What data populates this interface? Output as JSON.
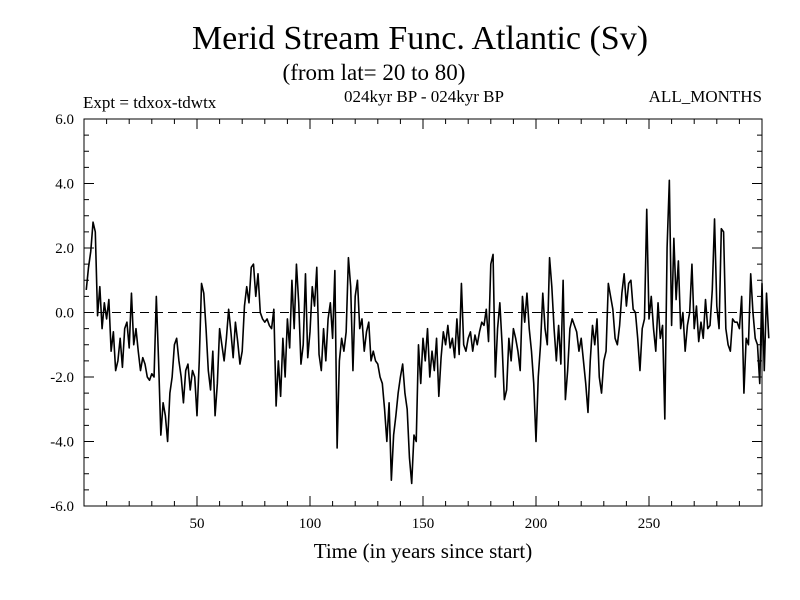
{
  "chart_data": {
    "type": "line",
    "title": "Merid Stream Func. Atlantic (Sv)",
    "subtitle": "(from lat= 20 to 80)",
    "expt_label": "Expt = tdxox-tdwtx",
    "period_label": "024kyr BP - 024kyr BP",
    "months_label": "ALL_MONTHS",
    "xlabel": "Time (in years since start)",
    "ylabel": "",
    "xlim": [
      0,
      300
    ],
    "ylim": [
      -6,
      6
    ],
    "x_ticks": [
      50,
      100,
      150,
      200,
      250
    ],
    "x_tick_labels": [
      "50",
      "100",
      "150",
      "200",
      "250"
    ],
    "y_ticks": [
      -6,
      -4,
      -2,
      0,
      2,
      4,
      6
    ],
    "y_tick_labels": [
      "-6.0",
      "-4.0",
      "-2.0",
      "0.0",
      "2.0",
      "4.0",
      "6.0"
    ],
    "zero_line": "dashed",
    "series": [
      {
        "name": "Merid Stream Func. Atlantic",
        "color": "#000000",
        "x_start": 1,
        "x_step": 1,
        "values": [
          0.7,
          1.4,
          1.9,
          2.8,
          2.5,
          -0.1,
          0.8,
          -0.5,
          0.3,
          -0.2,
          0.4,
          -1.2,
          -0.6,
          -1.8,
          -1.5,
          -0.8,
          -1.7,
          -0.5,
          -0.3,
          -1.1,
          0.6,
          -1.0,
          -0.5,
          -1.2,
          -1.8,
          -1.4,
          -1.6,
          -2.0,
          -2.1,
          -1.9,
          -2.0,
          0.5,
          -1.5,
          -3.8,
          -2.8,
          -3.2,
          -4.0,
          -2.5,
          -2.0,
          -1.0,
          -0.8,
          -1.5,
          -2.0,
          -2.8,
          -1.8,
          -1.6,
          -2.4,
          -1.8,
          -2.0,
          -3.2,
          -1.5,
          0.9,
          0.6,
          -0.5,
          -1.8,
          -2.4,
          -1.2,
          -3.2,
          -2.2,
          -0.5,
          -1.0,
          -1.5,
          -0.8,
          0.1,
          -0.6,
          -1.4,
          -0.3,
          -0.9,
          -1.6,
          -1.2,
          0.2,
          0.8,
          0.3,
          1.4,
          1.5,
          0.5,
          1.2,
          0.0,
          -0.2,
          -0.3,
          -0.2,
          -0.4,
          -0.5,
          0.1,
          -2.9,
          -1.5,
          -2.6,
          -0.8,
          -2.0,
          -0.2,
          -1.1,
          1.0,
          -0.5,
          1.5,
          0.3,
          -1.6,
          -1.0,
          1.2,
          -1.4,
          -0.6,
          0.8,
          0.2,
          1.4,
          -1.3,
          -1.8,
          -0.5,
          -1.5,
          -0.2,
          0.3,
          -0.8,
          1.3,
          -4.2,
          -1.5,
          -0.8,
          -1.2,
          -0.6,
          1.7,
          0.8,
          -1.8,
          0.5,
          1.0,
          -0.5,
          -0.2,
          -1.2,
          -0.6,
          -0.3,
          -1.5,
          -1.2,
          -1.5,
          -1.6,
          -2.0,
          -2.2,
          -3.0,
          -4.0,
          -2.8,
          -5.2,
          -3.8,
          -3.2,
          -2.5,
          -2.0,
          -1.6,
          -2.5,
          -3.0,
          -4.5,
          -5.3,
          -3.8,
          -4.0,
          -1.0,
          -2.2,
          -0.8,
          -1.5,
          -0.5,
          -2.0,
          -1.2,
          -1.8,
          -0.8,
          -2.6,
          -1.4,
          -0.6,
          -1.0,
          -0.4,
          -1.1,
          -0.8,
          -1.4,
          -0.2,
          -1.3,
          0.9,
          -1.0,
          -1.2,
          -0.8,
          -0.6,
          -1.2,
          -0.7,
          -1.0,
          -0.6,
          -0.3,
          -0.4,
          0.1,
          -0.9,
          1.5,
          1.8,
          -2.0,
          -0.5,
          0.3,
          -1.0,
          -2.7,
          -2.4,
          -0.8,
          -1.5,
          -0.5,
          -0.8,
          -1.2,
          -1.8,
          0.5,
          -0.3,
          0.6,
          -0.5,
          -1.2,
          -2.2,
          -4.0,
          -2.0,
          -1.0,
          0.6,
          -0.5,
          -1.0,
          1.7,
          0.8,
          -0.5,
          -1.5,
          -0.4,
          -1.6,
          1.0,
          -2.7,
          -1.8,
          -0.5,
          -0.2,
          -0.4,
          -0.6,
          -1.2,
          -0.8,
          -1.5,
          -2.2,
          -3.1,
          -1.5,
          -0.4,
          -1.0,
          -0.2,
          -2.0,
          -2.5,
          -1.5,
          -1.2,
          0.9,
          0.5,
          0.1,
          -0.8,
          -1.0,
          -0.4,
          0.6,
          1.2,
          0.2,
          0.9,
          1.0,
          0.1,
          0.0,
          -0.8,
          -1.8,
          -0.5,
          -0.2,
          3.2,
          -0.2,
          0.5,
          -0.5,
          -1.2,
          0.3,
          -0.8,
          -0.4,
          -3.3,
          2.0,
          4.1,
          -0.4,
          2.3,
          0.4,
          1.6,
          -0.5,
          0.0,
          -1.2,
          -0.4,
          0.0,
          1.5,
          -0.5,
          0.2,
          -0.9,
          -0.3,
          -0.8,
          0.4,
          -0.5,
          -0.4,
          0.7,
          2.9,
          0.2,
          -0.5,
          2.6,
          2.5,
          -0.5,
          -1.0,
          -1.2,
          -0.2,
          -0.3,
          -0.3,
          -0.5,
          0.5,
          -2.5,
          -0.8,
          -1.0,
          1.2,
          0.0,
          -0.8,
          -1.0,
          -2.2,
          0.9,
          -1.8,
          0.6,
          -0.8
        ]
      }
    ]
  }
}
